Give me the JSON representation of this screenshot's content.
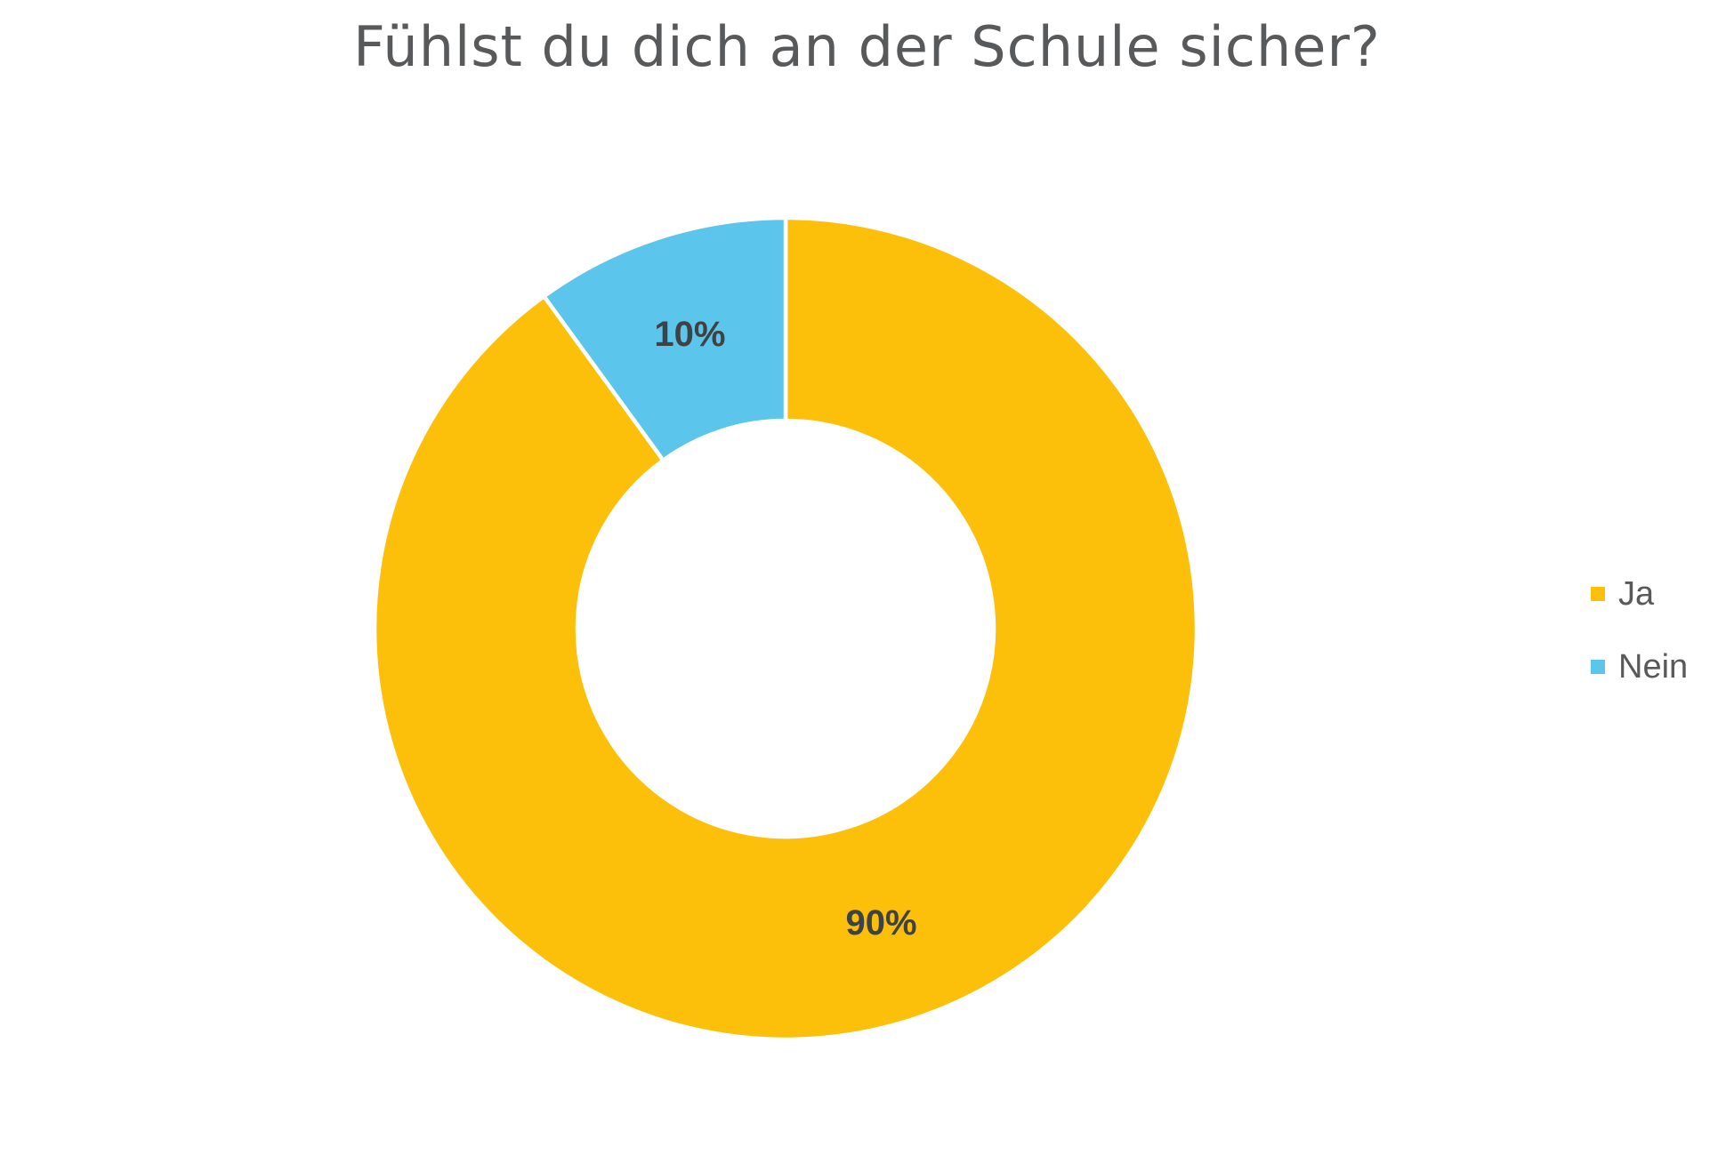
{
  "page": {
    "background": "#FFFFFF"
  },
  "chart_data": {
    "type": "pie",
    "subtype": "donut",
    "title": "Fühlst du dich an der Schule sicher?",
    "categories": [
      "Ja",
      "Nein"
    ],
    "values": [
      90,
      10
    ],
    "unit": "%",
    "slice_labels": [
      "90%",
      "10%"
    ],
    "colors": [
      "#FDC00A",
      "#5BC5EB"
    ],
    "start_angle_deg": 0,
    "direction": "clockwise",
    "legend_position": "right",
    "legend_entries": [
      "Ja",
      "Nein"
    ],
    "gap_color": "#FFFFFF",
    "inner_radius_ratio": 0.506
  },
  "styles": {
    "title_color": "#58595B",
    "slice_label_color": "#3F4245",
    "legend_text_color": "#595959"
  }
}
